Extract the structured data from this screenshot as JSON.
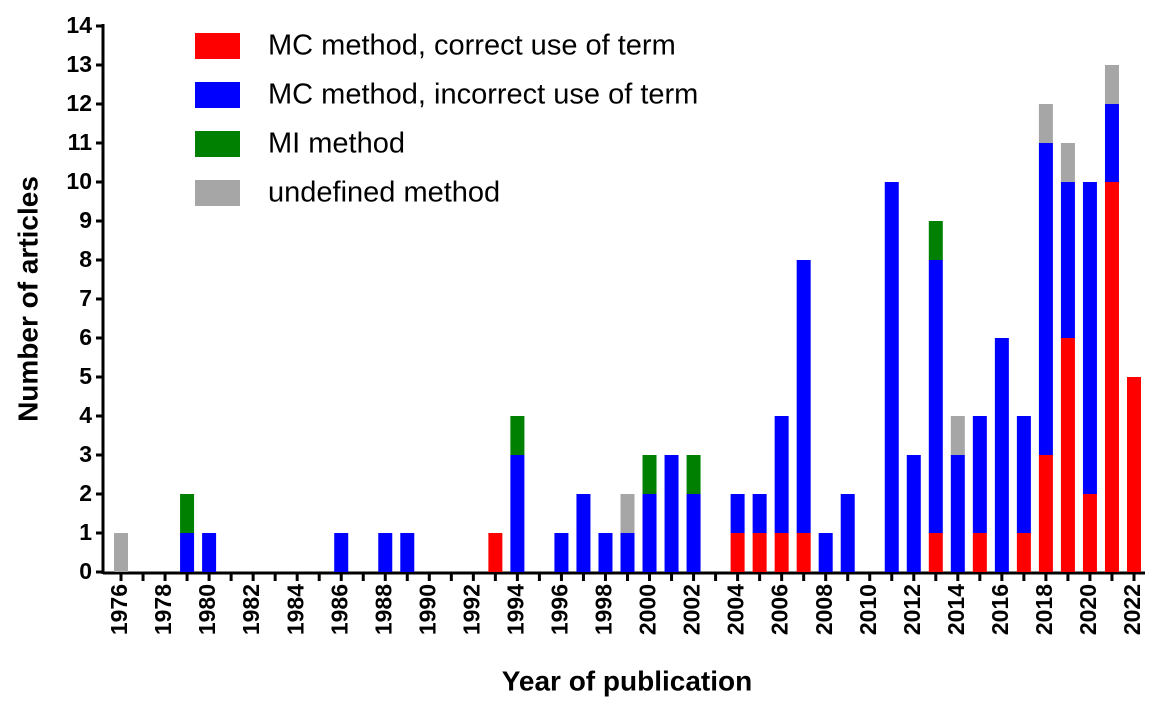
{
  "chart_data": {
    "type": "stacked_bar",
    "x_label": "Year of publication",
    "y_label": "Number of articles",
    "categories": [
      "1976",
      null,
      "1978",
      null,
      "1980",
      null,
      "1982",
      null,
      "1984",
      null,
      "1986",
      null,
      "1988",
      null,
      "1990",
      null,
      "1992",
      null,
      "1994",
      null,
      "1996",
      null,
      "1998",
      null,
      "2000",
      null,
      "2002",
      null,
      "2004",
      null,
      "2006",
      null,
      "2008",
      null,
      "2010",
      null,
      "2012",
      null,
      "2014",
      null,
      "2016",
      null,
      "2018",
      null,
      "2020",
      null,
      "2022"
    ],
    "series": [
      {
        "name": "MC method, correct use of term",
        "color": "#ff0000",
        "values": [
          0,
          0,
          0,
          0,
          0,
          0,
          0,
          0,
          0,
          0,
          0,
          0,
          0,
          0,
          0,
          0,
          0,
          1,
          0,
          0,
          0,
          0,
          0,
          0,
          0,
          0,
          0,
          0,
          1,
          1,
          1,
          1,
          0,
          0,
          0,
          0,
          0,
          1,
          0,
          1,
          0,
          1,
          3,
          6,
          2,
          10,
          5
        ]
      },
      {
        "name": "MC method, incorrect use of term",
        "color": "#0000ff",
        "values": [
          0,
          0,
          0,
          1,
          1,
          0,
          0,
          0,
          0,
          0,
          1,
          0,
          1,
          1,
          0,
          0,
          0,
          0,
          3,
          0,
          1,
          2,
          1,
          1,
          2,
          3,
          2,
          0,
          1,
          1,
          3,
          7,
          1,
          2,
          0,
          10,
          3,
          7,
          3,
          3,
          6,
          3,
          8,
          4,
          8,
          2,
          0
        ]
      },
      {
        "name": "MI method",
        "color": "#008000",
        "values": [
          0,
          0,
          0,
          1,
          0,
          0,
          0,
          0,
          0,
          0,
          0,
          0,
          0,
          0,
          0,
          0,
          0,
          0,
          1,
          0,
          0,
          0,
          0,
          0,
          1,
          0,
          1,
          0,
          0,
          0,
          0,
          0,
          0,
          0,
          0,
          0,
          0,
          1,
          0,
          0,
          0,
          0,
          0,
          0,
          0,
          0,
          0
        ]
      },
      {
        "name": "undefined method",
        "color": "#a6a6a6",
        "values": [
          1,
          0,
          0,
          0,
          0,
          0,
          0,
          0,
          0,
          0,
          0,
          0,
          0,
          0,
          0,
          0,
          0,
          0,
          0,
          0,
          0,
          0,
          0,
          1,
          0,
          0,
          0,
          0,
          0,
          0,
          0,
          0,
          0,
          0,
          0,
          0,
          0,
          0,
          1,
          0,
          0,
          0,
          1,
          1,
          0,
          1,
          0
        ]
      }
    ],
    "ylim": [
      0,
      14
    ],
    "yticks": [
      0,
      1,
      2,
      3,
      4,
      5,
      6,
      7,
      8,
      9,
      10,
      11,
      12,
      13,
      14
    ],
    "legend": "upper left"
  }
}
